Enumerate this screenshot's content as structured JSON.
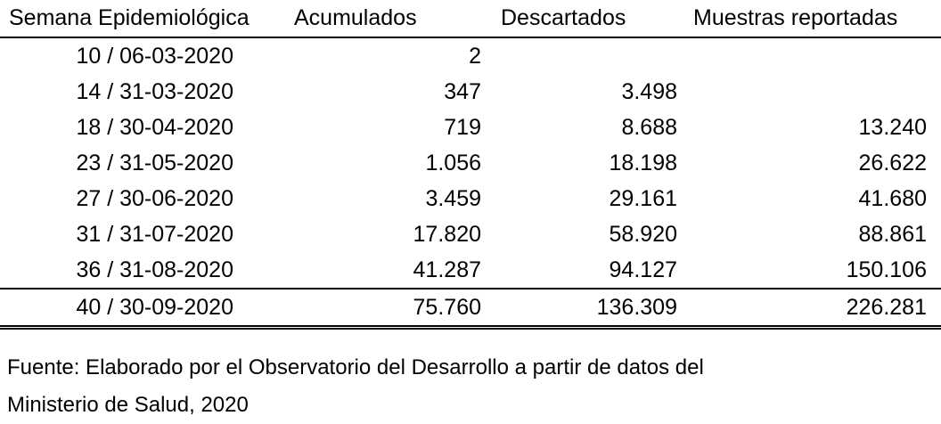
{
  "table": {
    "headers": [
      "Semana Epidemiológica",
      "Acumulados",
      "Descartados",
      "Muestras reportadas"
    ],
    "rows": [
      [
        "10 / 06-03-2020",
        "2",
        null,
        null
      ],
      [
        "14 / 31-03-2020",
        "347",
        "3.498",
        null
      ],
      [
        "18 / 30-04-2020",
        "719",
        "8.688",
        "13.240"
      ],
      [
        "23 / 31-05-2020",
        "1.056",
        "18.198",
        "26.622"
      ],
      [
        "27 / 30-06-2020",
        "3.459",
        "29.161",
        "41.680"
      ],
      [
        "31 / 31-07-2020",
        "17.820",
        "58.920",
        "88.861"
      ],
      [
        "36 / 31-08-2020",
        "41.287",
        "94.127",
        "150.106"
      ],
      [
        "40 / 30-09-2020",
        "75.760",
        "136.309",
        "226.281"
      ]
    ]
  },
  "source": [
    "Fuente: Elaborado por el Observatorio del Desarrollo a partir de datos del",
    "Ministerio de Salud, 2020"
  ]
}
